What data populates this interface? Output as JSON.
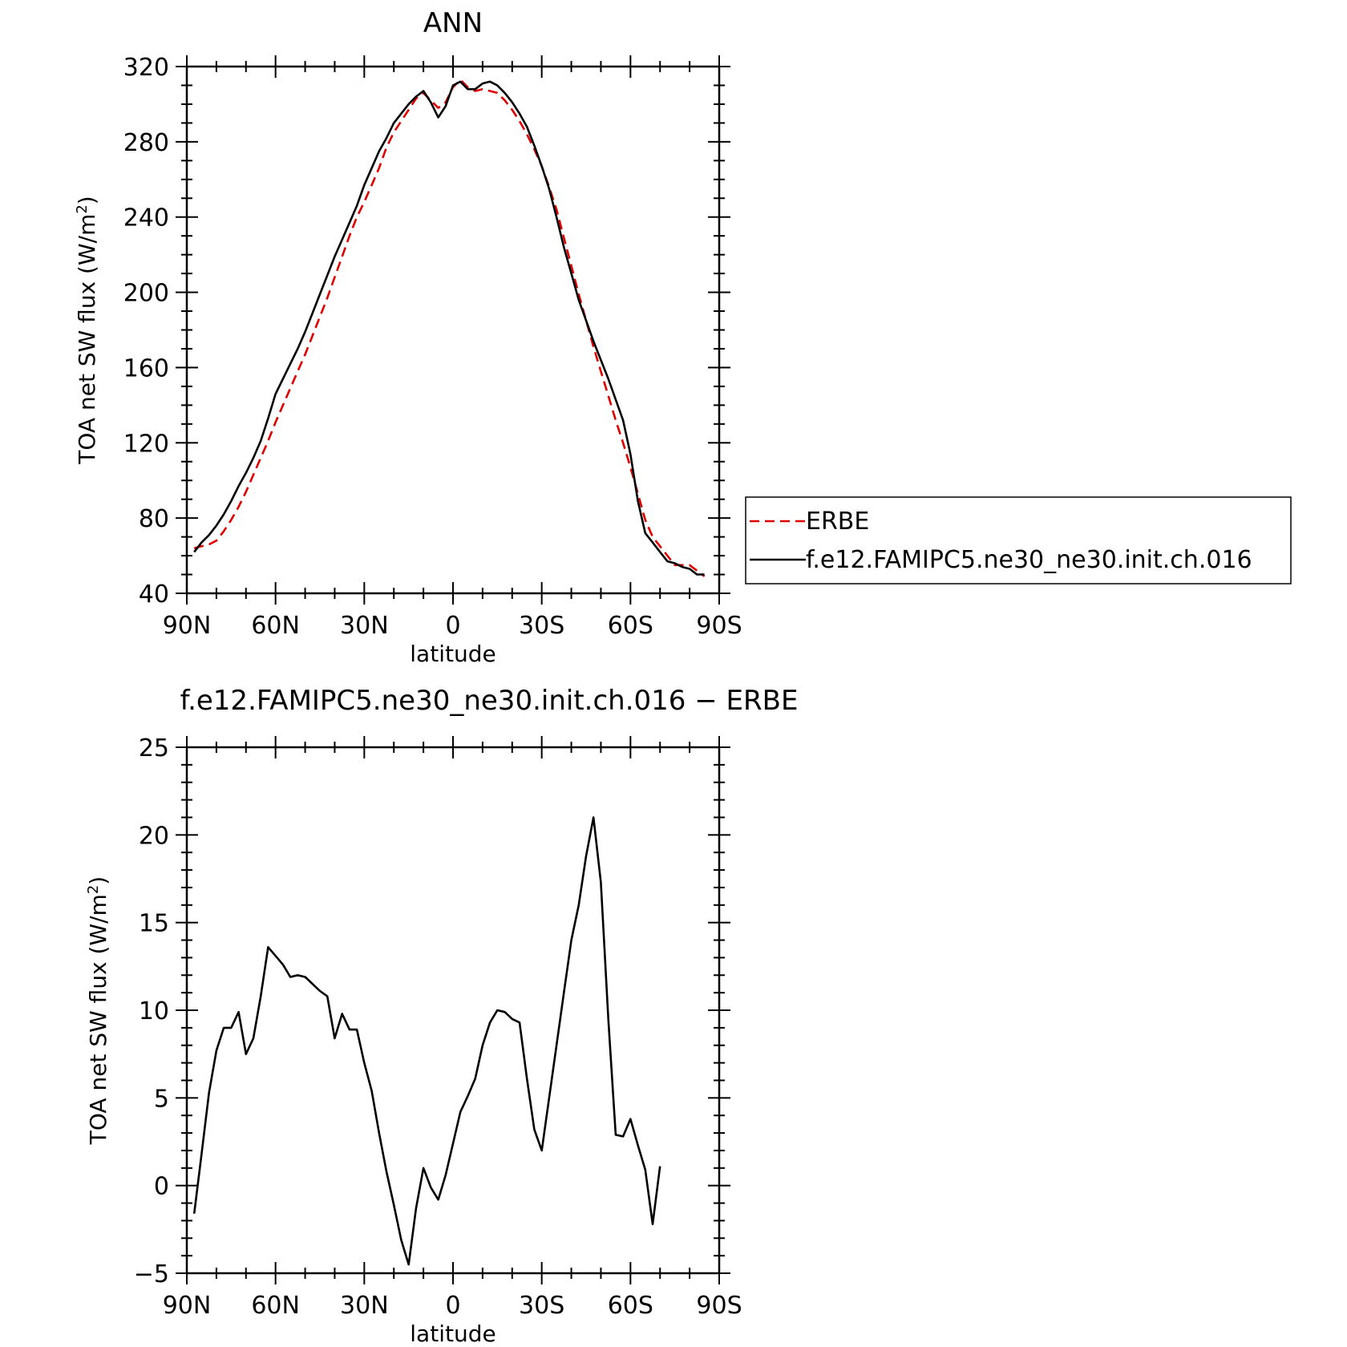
{
  "chart_data": [
    {
      "type": "line",
      "title": "ANN",
      "xlabel": "latitude",
      "ylabel": "TOA net SW flux (W/m²)",
      "ylabel_base": "TOA net SW flux (W/m",
      "ylabel_sup": "2",
      "ylabel_end": ")",
      "xlim": [
        90,
        -90
      ],
      "ylim": [
        40,
        320
      ],
      "x_ticks": [
        90,
        60,
        30,
        0,
        -30,
        -60,
        -90
      ],
      "x_tick_labels": [
        "90N",
        "60N",
        "30N",
        "0",
        "30S",
        "60S",
        "90S"
      ],
      "y_ticks": [
        40,
        80,
        120,
        160,
        200,
        240,
        280,
        320
      ],
      "y_tick_labels": [
        "40",
        "80",
        "120",
        "160",
        "200",
        "240",
        "280",
        "320"
      ],
      "legend": "right",
      "series": [
        {
          "name": "ERBE",
          "color": "#e00000",
          "dash": "dashed",
          "points": [
            [
              87.5,
              64
            ],
            [
              85,
              65
            ],
            [
              82.5,
              66
            ],
            [
              80,
              68
            ],
            [
              77.5,
              73
            ],
            [
              75,
              79
            ],
            [
              72.5,
              86
            ],
            [
              70,
              94
            ],
            [
              67.5,
              103
            ],
            [
              65,
              112
            ],
            [
              62.5,
              121
            ],
            [
              60,
              131
            ],
            [
              57.5,
              140
            ],
            [
              55,
              149
            ],
            [
              52.5,
              158
            ],
            [
              50,
              167
            ],
            [
              47.5,
              177
            ],
            [
              45,
              187
            ],
            [
              42.5,
              197
            ],
            [
              40,
              208
            ],
            [
              37.5,
              219
            ],
            [
              35,
              230
            ],
            [
              32.5,
              240
            ],
            [
              30,
              248
            ],
            [
              27.5,
              257
            ],
            [
              25,
              266
            ],
            [
              22.5,
              277
            ],
            [
              20,
              285
            ],
            [
              17.5,
              291
            ],
            [
              15,
              297
            ],
            [
              12.5,
              303
            ],
            [
              10,
              306
            ],
            [
              7.5,
              302
            ],
            [
              5,
              298
            ],
            [
              2.5,
              301
            ],
            [
              0,
              309
            ],
            [
              -2.5,
              313
            ],
            [
              -5,
              309
            ],
            [
              -7.5,
              307
            ],
            [
              -10,
              308
            ],
            [
              -12.5,
              307
            ],
            [
              -15,
              306
            ],
            [
              -17.5,
              302
            ],
            [
              -20,
              297
            ],
            [
              -22.5,
              291
            ],
            [
              -25,
              284
            ],
            [
              -27.5,
              276
            ],
            [
              -30,
              267
            ],
            [
              -32.5,
              256
            ],
            [
              -35,
              244
            ],
            [
              -37.5,
              229
            ],
            [
              -40,
              214
            ],
            [
              -42.5,
              199
            ],
            [
              -45,
              185
            ],
            [
              -47.5,
              171
            ],
            [
              -50,
              158
            ],
            [
              -52.5,
              145
            ],
            [
              -55,
              132
            ],
            [
              -57.5,
              120
            ],
            [
              -60,
              107
            ],
            [
              -62.5,
              93
            ],
            [
              -65,
              79
            ],
            [
              -67.5,
              70
            ],
            [
              -70,
              65
            ],
            [
              -72.5,
              60
            ],
            [
              -75,
              55
            ],
            [
              -77.5,
              55
            ],
            [
              -80,
              55
            ],
            [
              -82.5,
              52
            ],
            [
              -85,
              49
            ]
          ]
        },
        {
          "name": "f.e12.FAMIPC5.ne30_ne30.init.ch.016",
          "color": "#000000",
          "dash": "solid",
          "points": [
            [
              87.5,
              62
            ],
            [
              85,
              67
            ],
            [
              82.5,
              71
            ],
            [
              80,
              76
            ],
            [
              77.5,
              82
            ],
            [
              75,
              89
            ],
            [
              72.5,
              97
            ],
            [
              70,
              104
            ],
            [
              67.5,
              112
            ],
            [
              65,
              121
            ],
            [
              62.5,
              133
            ],
            [
              60,
              146
            ],
            [
              57.5,
              154
            ],
            [
              55,
              162
            ],
            [
              52.5,
              170
            ],
            [
              50,
              179
            ],
            [
              47.5,
              189
            ],
            [
              45,
              199
            ],
            [
              42.5,
              209
            ],
            [
              40,
              219
            ],
            [
              37.5,
              228
            ],
            [
              35,
              237
            ],
            [
              32.5,
              246
            ],
            [
              30,
              257
            ],
            [
              27.5,
              266
            ],
            [
              25,
              275
            ],
            [
              22.5,
              282
            ],
            [
              20,
              290
            ],
            [
              17.5,
              295
            ],
            [
              15,
              300
            ],
            [
              12.5,
              304
            ],
            [
              10,
              307
            ],
            [
              7.5,
              301
            ],
            [
              5,
              293
            ],
            [
              2.5,
              299
            ],
            [
              0,
              310
            ],
            [
              -2.5,
              312
            ],
            [
              -5,
              308
            ],
            [
              -7.5,
              308
            ],
            [
              -10,
              311
            ],
            [
              -12.5,
              312
            ],
            [
              -15,
              310
            ],
            [
              -17.5,
              306
            ],
            [
              -20,
              301
            ],
            [
              -22.5,
              295
            ],
            [
              -25,
              288
            ],
            [
              -27.5,
              278
            ],
            [
              -30,
              267
            ],
            [
              -32.5,
              255
            ],
            [
              -35,
              240
            ],
            [
              -37.5,
              224
            ],
            [
              -40,
              210
            ],
            [
              -42.5,
              196
            ],
            [
              -45,
              185
            ],
            [
              -47.5,
              174
            ],
            [
              -50,
              164
            ],
            [
              -52.5,
              154
            ],
            [
              -55,
              143
            ],
            [
              -57.5,
              132
            ],
            [
              -60,
              114
            ],
            [
              -62.5,
              89
            ],
            [
              -65,
              72
            ],
            [
              -67.5,
              67
            ],
            [
              -70,
              62
            ],
            [
              -72.5,
              57
            ],
            [
              -75,
              56
            ],
            [
              -77.5,
              54
            ],
            [
              -80,
              53
            ],
            [
              -82.5,
              50
            ],
            [
              -85,
              50
            ]
          ]
        }
      ]
    },
    {
      "type": "line",
      "title": "f.e12.FAMIPC5.ne30_ne30.init.ch.016 − ERBE",
      "xlabel": "latitude",
      "ylabel": "TOA net SW flux (W/m²)",
      "ylabel_base": "TOA net SW flux (W/m",
      "ylabel_sup": "2",
      "ylabel_end": ")",
      "xlim": [
        90,
        -90
      ],
      "ylim": [
        -5,
        25
      ],
      "x_ticks": [
        90,
        60,
        30,
        0,
        -30,
        -60,
        -90
      ],
      "x_tick_labels": [
        "90N",
        "60N",
        "30N",
        "0",
        "30S",
        "60S",
        "90S"
      ],
      "y_ticks": [
        -5,
        0,
        5,
        10,
        15,
        20,
        25
      ],
      "y_tick_labels": [
        "−5",
        "0",
        "5",
        "10",
        "15",
        "20",
        "25"
      ],
      "series": [
        {
          "color": "#000000",
          "dash": "solid",
          "points": [
            [
              87.5,
              -1.6
            ],
            [
              85,
              1.8
            ],
            [
              82.5,
              5.3
            ],
            [
              80,
              7.7
            ],
            [
              77.5,
              9.0
            ],
            [
              75,
              9.0
            ],
            [
              72.5,
              9.9
            ],
            [
              70,
              7.5
            ],
            [
              67.5,
              8.4
            ],
            [
              65,
              10.8
            ],
            [
              62.5,
              13.6
            ],
            [
              60,
              13.1
            ],
            [
              57.5,
              12.6
            ],
            [
              55,
              11.9
            ],
            [
              52.5,
              12.0
            ],
            [
              50,
              11.9
            ],
            [
              47.5,
              11.5
            ],
            [
              45,
              11.1
            ],
            [
              42.5,
              10.8
            ],
            [
              40,
              8.4
            ],
            [
              37.5,
              9.8
            ],
            [
              35,
              8.9
            ],
            [
              32.5,
              8.9
            ],
            [
              30,
              7.0
            ],
            [
              27.5,
              5.4
            ],
            [
              25,
              3.0
            ],
            [
              22.5,
              0.8
            ],
            [
              20,
              -1.1
            ],
            [
              17.5,
              -3.1
            ],
            [
              15,
              -4.5
            ],
            [
              12.5,
              -1.3
            ],
            [
              10,
              1.0
            ],
            [
              7.5,
              -0.1
            ],
            [
              5,
              -0.8
            ],
            [
              2.5,
              0.6
            ],
            [
              0,
              2.4
            ],
            [
              -2.5,
              4.2
            ],
            [
              -5,
              5.1
            ],
            [
              -7.5,
              6.1
            ],
            [
              -10,
              8.0
            ],
            [
              -12.5,
              9.3
            ],
            [
              -15,
              10.0
            ],
            [
              -17.5,
              9.9
            ],
            [
              -20,
              9.5
            ],
            [
              -22.5,
              9.3
            ],
            [
              -25,
              6.1
            ],
            [
              -27.5,
              3.2
            ],
            [
              -30,
              2.0
            ],
            [
              -32.5,
              5.0
            ],
            [
              -35,
              8.0
            ],
            [
              -37.5,
              11.0
            ],
            [
              -40,
              14.0
            ],
            [
              -42.5,
              16.0
            ],
            [
              -45,
              18.8
            ],
            [
              -47.5,
              21.0
            ],
            [
              -50,
              17.3
            ],
            [
              -52.5,
              9.5
            ],
            [
              -55,
              2.9
            ],
            [
              -57.5,
              2.8
            ],
            [
              -60,
              3.8
            ],
            [
              -62.5,
              2.3
            ],
            [
              -65,
              0.9
            ],
            [
              -67.5,
              -2.2
            ],
            [
              -70,
              1.1
            ]
          ]
        }
      ]
    }
  ]
}
